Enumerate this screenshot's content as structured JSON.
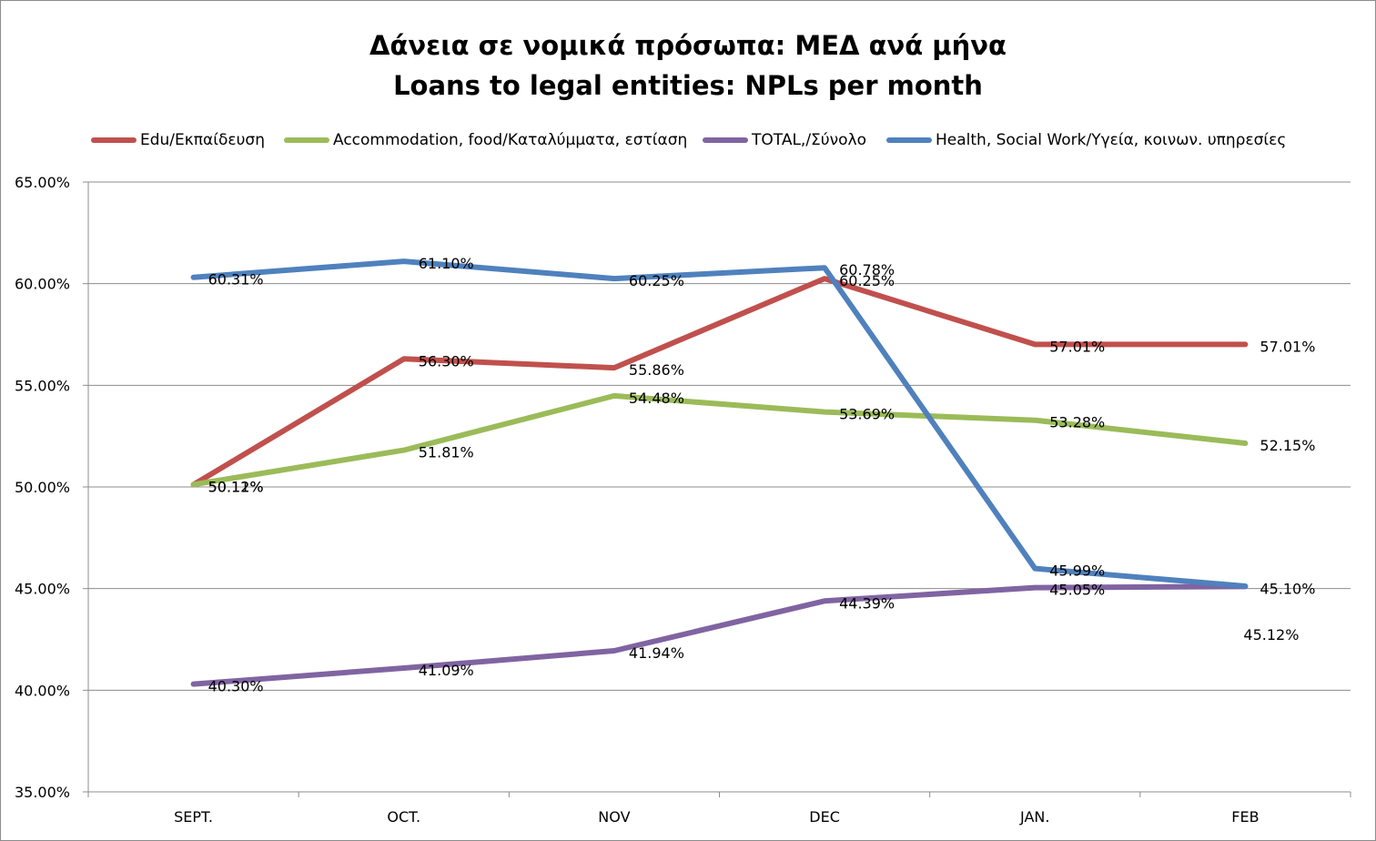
{
  "chart_data": {
    "type": "line",
    "title": "Δάνεια σε νομικά πρόσωπα: ΜΕΔ ανά μήνα",
    "subtitle": "Loans to legal entities: NPLs per month",
    "xlabel": "",
    "ylabel": "",
    "categories": [
      "SEPT.",
      "OCT.",
      "NOV",
      "DEC",
      "JAN.",
      "FEB"
    ],
    "ylim": [
      35,
      65
    ],
    "ytick_labels": [
      "35.00%",
      "40.00%",
      "45.00%",
      "50.00%",
      "55.00%",
      "60.00%",
      "65.00%"
    ],
    "grid": true,
    "legend_position": "top",
    "series": [
      {
        "name": "Edu/Εκπαίδευση",
        "color": "#c0504d",
        "values": [
          50.11,
          56.3,
          55.86,
          60.25,
          57.01,
          57.01
        ],
        "labels": [
          "50.11%",
          "56.30%",
          "55.86%",
          "60.25%",
          "57.01%",
          "57.01%"
        ]
      },
      {
        "name": "Accommodation, food/Καταλύμματα, εστίαση",
        "color": "#9bbb59",
        "values": [
          50.12,
          51.81,
          54.48,
          53.69,
          53.28,
          52.15
        ],
        "labels": [
          "50.12%",
          "51.81%",
          "54.48%",
          "53.69%",
          "53.28%",
          "52.15%"
        ]
      },
      {
        "name": "TOTAL,/Σύνολο",
        "color": "#8064a2",
        "values": [
          40.3,
          41.09,
          41.94,
          44.39,
          45.05,
          45.1
        ],
        "labels": [
          "40.30%",
          "41.09%",
          "41.94%",
          "44.39%",
          "45.05%",
          "45.10%"
        ]
      },
      {
        "name": "Health, Social Work/Υγεία, κοινων. υπηρεσίες",
        "color": "#4f81bd",
        "values": [
          60.31,
          61.1,
          60.25,
          60.78,
          45.99,
          45.12
        ],
        "labels": [
          "60.31%",
          "61.10%",
          "60.25%",
          "60.78%",
          "45.99%",
          "45.12%"
        ]
      }
    ]
  }
}
